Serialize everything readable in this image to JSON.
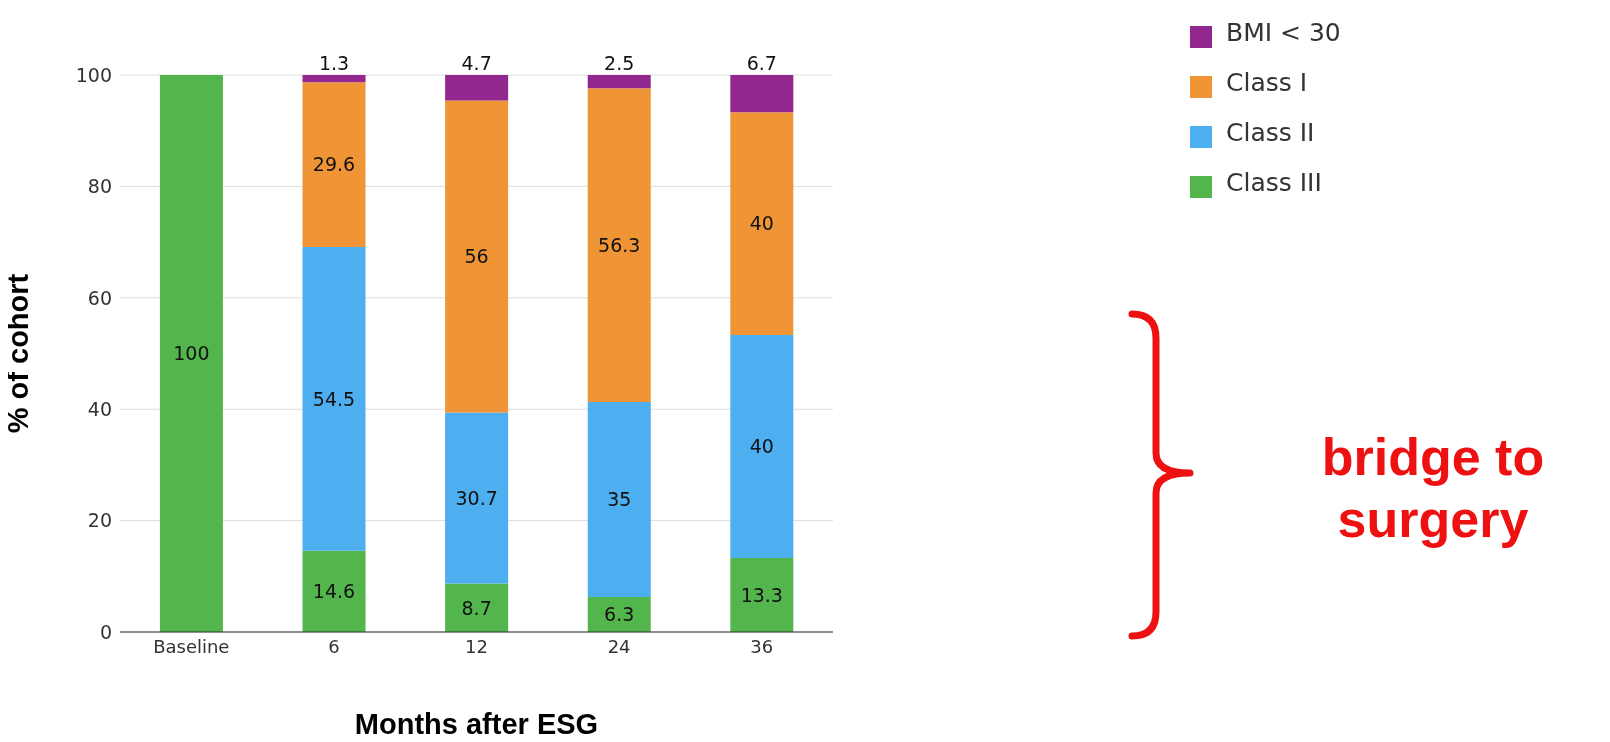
{
  "chart_data": {
    "type": "bar",
    "stacked": true,
    "xlabel": "Months after ESG",
    "ylabel": "% of cohort",
    "categories": [
      "Baseline",
      "6",
      "12",
      "24",
      "36"
    ],
    "series": [
      {
        "name": "Class III",
        "color": "#53b64c",
        "values": [
          100,
          14.6,
          8.7,
          6.3,
          13.3
        ]
      },
      {
        "name": "Class II",
        "color": "#4daef0",
        "values": [
          null,
          54.5,
          30.7,
          35,
          40
        ]
      },
      {
        "name": "Class I",
        "color": "#f09536",
        "values": [
          null,
          29.6,
          56,
          56.3,
          40
        ]
      },
      {
        "name": "BMI < 30",
        "color": "#92278f",
        "values": [
          null,
          1.3,
          4.7,
          2.5,
          6.7
        ]
      }
    ],
    "ylim": [
      0,
      100
    ],
    "yticks": [
      0,
      20,
      40,
      60,
      80,
      100
    ],
    "grid": "y",
    "legend": "top right",
    "data_labels": true,
    "annotations": [
      "bridge to surgery"
    ]
  }
}
